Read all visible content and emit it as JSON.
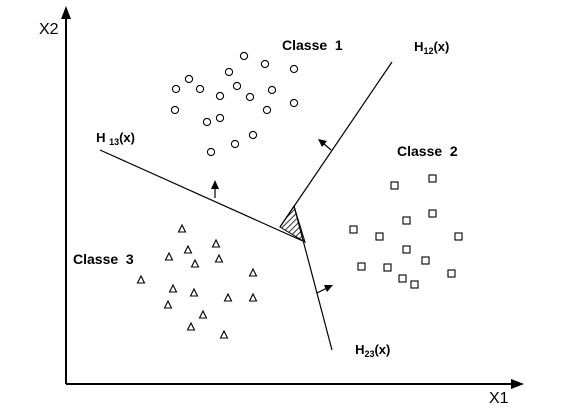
{
  "axes": {
    "x_label": "X1",
    "y_label": "X2"
  },
  "classes": [
    {
      "label": "Classe  1",
      "marker": "circle"
    },
    {
      "label": "Classe  2",
      "marker": "square"
    },
    {
      "label": "Classe  3",
      "marker": "triangle"
    }
  ],
  "hyperplanes": {
    "h12": {
      "name": "H",
      "sub": "12",
      "arg": "(x)"
    },
    "h13": {
      "name": "H ",
      "sub": "13",
      "arg": "(x)"
    },
    "h23": {
      "name": "H",
      "sub": "23",
      "arg": "(x)"
    }
  },
  "colors": {
    "ink": "#000000",
    "background": "#ffffff",
    "ambiguous_region_hatch": "#000000"
  }
}
